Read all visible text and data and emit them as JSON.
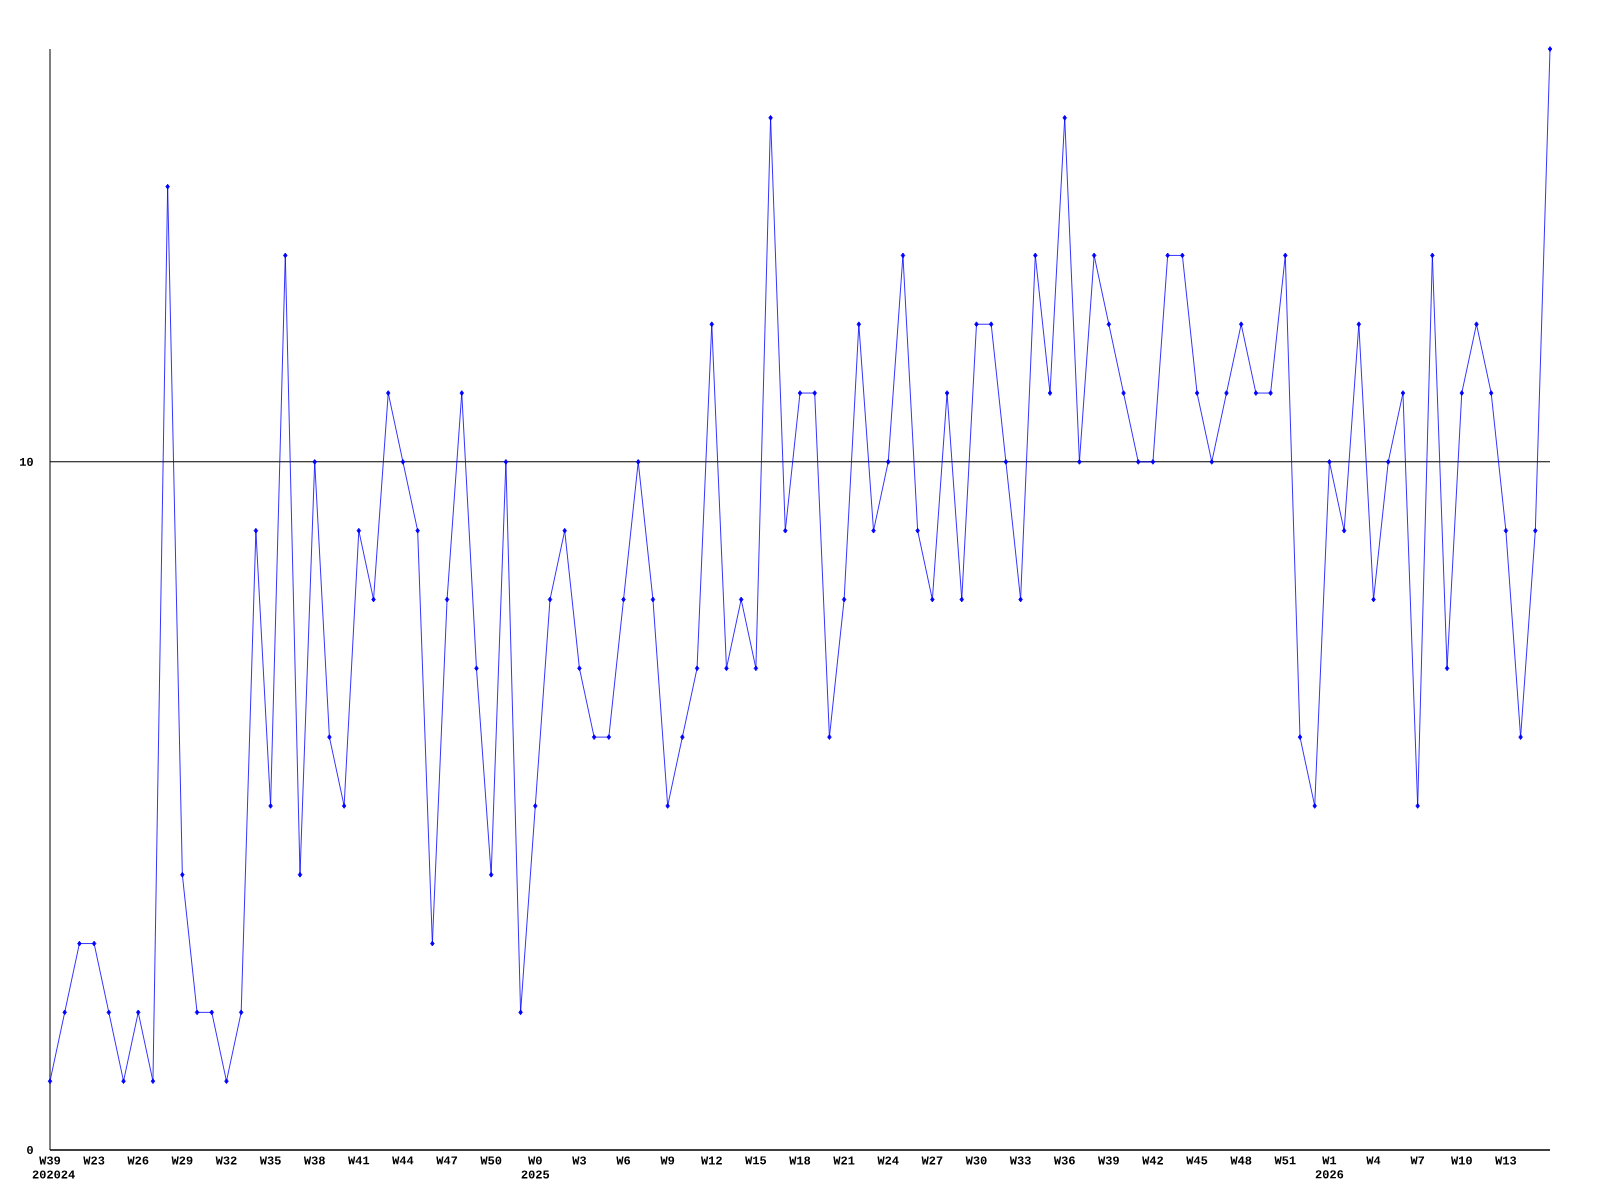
{
  "chart_data": {
    "type": "line",
    "categories": [
      "W39 202024",
      null,
      null,
      "W23",
      null,
      null,
      "W26",
      null,
      null,
      "W29",
      null,
      null,
      "W32",
      null,
      null,
      "W35",
      null,
      null,
      "W38",
      null,
      null,
      "W41",
      null,
      null,
      "W44",
      null,
      null,
      "W47",
      null,
      null,
      "W50",
      null,
      null,
      "W0 2025",
      null,
      null,
      "W3",
      null,
      null,
      "W6",
      null,
      null,
      "W9",
      null,
      null,
      "W12",
      null,
      null,
      "W15",
      null,
      null,
      "W18",
      null,
      null,
      "W21",
      null,
      null,
      "W24",
      null,
      null,
      "W27",
      null,
      null,
      "W30",
      null,
      null,
      "W33",
      null,
      null,
      "W36",
      null,
      null,
      "W39",
      null,
      null,
      "W42",
      null,
      null,
      "W45",
      null,
      null,
      "W48",
      null,
      null,
      "W51",
      null,
      null,
      "W1 2026",
      null,
      null,
      "W4",
      null,
      null,
      "W7",
      null,
      null,
      "W10",
      null,
      null,
      "W13",
      null,
      null,
      null
    ],
    "values": [
      1,
      2,
      3,
      3,
      2,
      1,
      2,
      1,
      14,
      4,
      2,
      2,
      1,
      2,
      9,
      5,
      13,
      4,
      10,
      6,
      5,
      9,
      8,
      11,
      10,
      9,
      3,
      8,
      11,
      7,
      4,
      10,
      2,
      5,
      8,
      9,
      7,
      6,
      6,
      8,
      10,
      8,
      5,
      6,
      7,
      12,
      7,
      8,
      7,
      15,
      9,
      11,
      11,
      6,
      8,
      12,
      9,
      10,
      13,
      9,
      8,
      11,
      8,
      12,
      12,
      10,
      8,
      13,
      11,
      15,
      10,
      13,
      12,
      11,
      10,
      10,
      13,
      13,
      11,
      10,
      11,
      12,
      11,
      11,
      13,
      6,
      5,
      10,
      9,
      12,
      8,
      10,
      11,
      5,
      13,
      7,
      11,
      12,
      11,
      9,
      6,
      9,
      16
    ],
    "color": "#0000ff",
    "marker": "diamond",
    "grid": "y",
    "ylim": [
      0,
      16
    ],
    "yticks": [
      0,
      10
    ]
  }
}
